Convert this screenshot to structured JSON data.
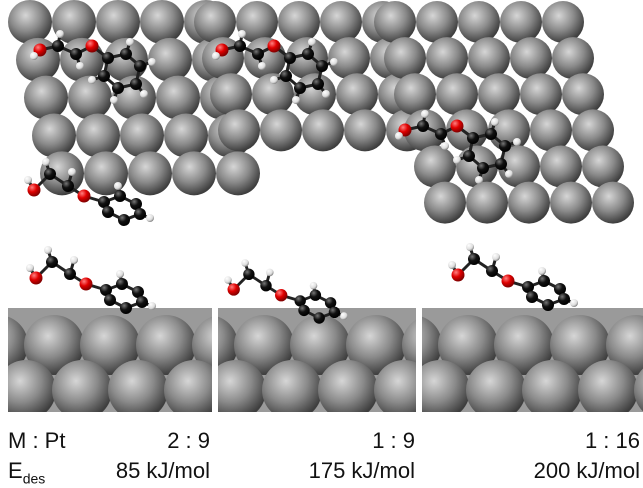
{
  "labels": {
    "ratio_label": "M : Pt",
    "energy_label": "E",
    "energy_subscript": "des"
  },
  "columns": [
    {
      "ratio": "2 : 9",
      "energy": "85 kJ/mol"
    },
    {
      "ratio": "1 : 9",
      "energy": "175 kJ/mol"
    },
    {
      "ratio": "1 : 16",
      "energy": "200 kJ/mol"
    }
  ]
}
